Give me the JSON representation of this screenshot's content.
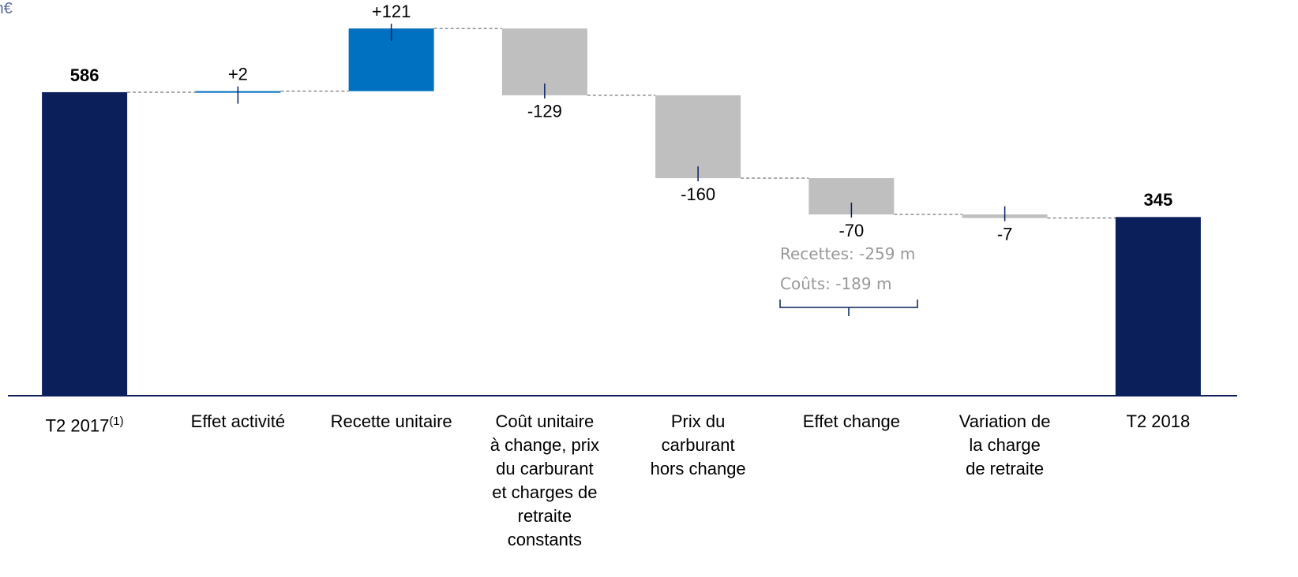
{
  "chart_data": {
    "type": "waterfall",
    "unit": "m€",
    "categories": [
      "T2 2017",
      "Effet activité",
      "Recette unitaire",
      "Coût unitaire\nà change, prix\ndu carburant\net charges de\nretraite\nconstants",
      "Prix du\ncarburant\nhors change",
      "Effet change",
      "Variation de\nla charge\nde retraite",
      "T2 2018"
    ],
    "category_superscripts": [
      "(1)",
      null,
      null,
      null,
      null,
      null,
      null,
      null
    ],
    "values": [
      586,
      2,
      121,
      -129,
      -160,
      -70,
      -7,
      345
    ],
    "value_labels": [
      "586",
      "+2",
      "+121",
      "-129",
      "-160",
      "-70",
      "-7",
      "345"
    ],
    "totals": [
      true,
      false,
      false,
      false,
      false,
      false,
      false,
      true
    ],
    "colors": {
      "total": "#0b1f5b",
      "increase": "#0070c0",
      "decrease": "#bfbfbf"
    },
    "ylim": [
      0,
      764
    ],
    "annotations": [
      "Recettes: -259 m",
      "Coûts: -189 m"
    ]
  }
}
